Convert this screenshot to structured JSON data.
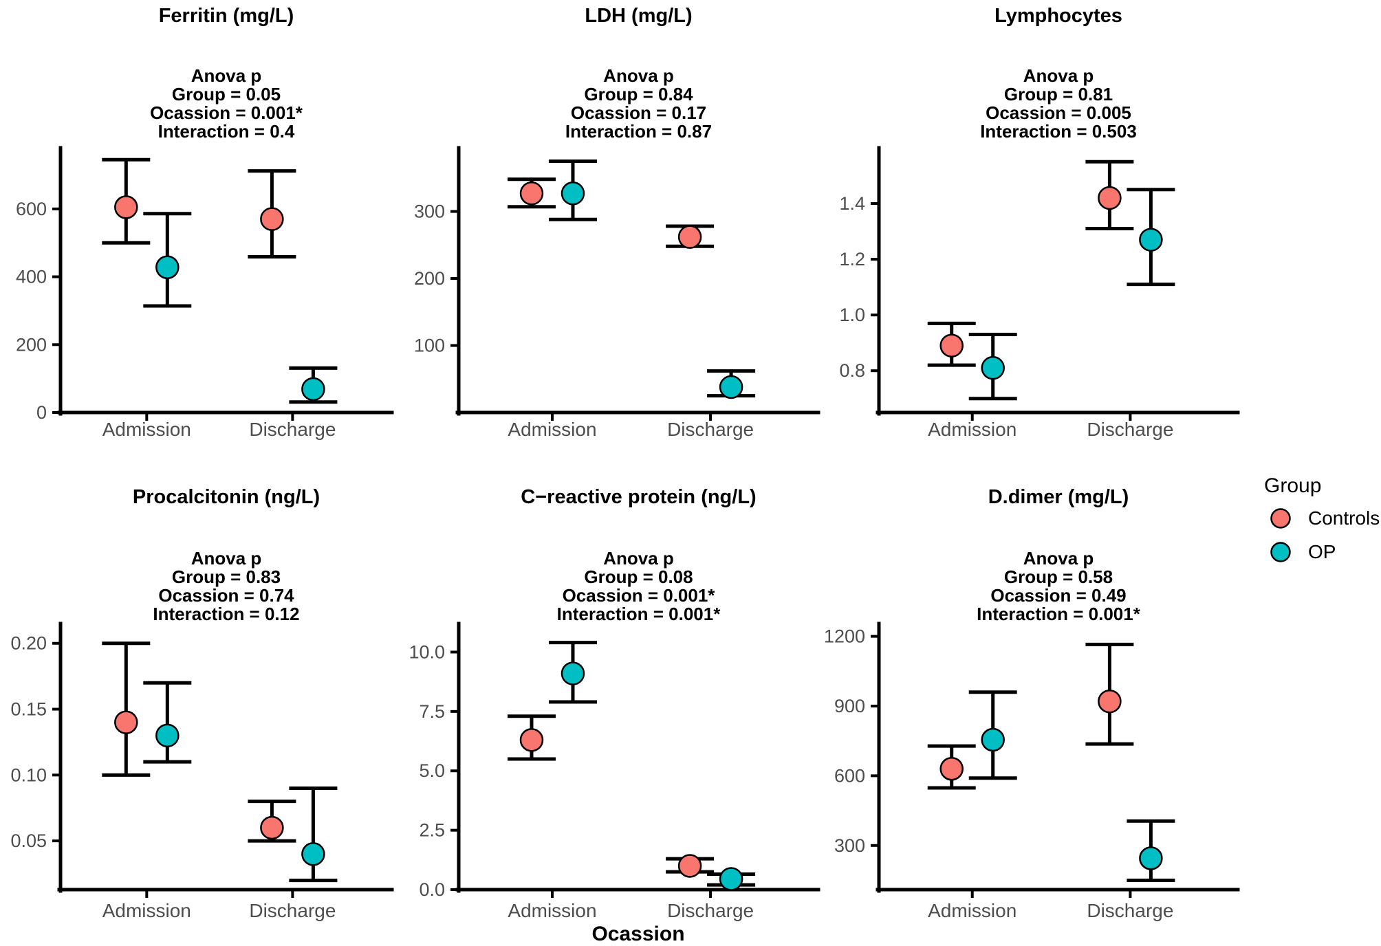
{
  "x_axis": {
    "label": "Ocassion",
    "categories": [
      "Admission",
      "Discharge"
    ]
  },
  "legend": {
    "title": "Group",
    "entries": [
      {
        "label": "Controls",
        "color": "#F8766D"
      },
      {
        "label": "OP",
        "color": "#00BFC4"
      }
    ]
  },
  "styles": {
    "controls_color": "#F8766D",
    "op_color": "#00BFC4",
    "axis_text_color": "#4d4d4d",
    "axis_line_color": "#000000",
    "background": "#ffffff"
  },
  "chart_data": [
    {
      "type": "scatter",
      "title": "Ferritin (mg/L)",
      "annotation_lines": [
        "Anova p",
        "Group = 0.05",
        "Ocassion = 0.001*",
        "Interaction = 0.4"
      ],
      "x": [
        "Admission",
        "Discharge"
      ],
      "ylim": [
        0,
        780
      ],
      "yticks": [
        "0",
        "200",
        "400",
        "600"
      ],
      "grid": false,
      "series": [
        {
          "name": "Controls",
          "color": "#F8766D",
          "points": [
            {
              "occasion": "Admission",
              "mean": 605,
              "ci": [
                500,
                745
              ]
            },
            {
              "occasion": "Discharge",
              "mean": 570,
              "ci": [
                459,
                712
              ]
            }
          ]
        },
        {
          "name": "OP",
          "color": "#00BFC4",
          "points": [
            {
              "occasion": "Admission",
              "mean": 428,
              "ci": [
                314,
                586
              ]
            },
            {
              "occasion": "Discharge",
              "mean": 69,
              "ci": [
                31,
                131
              ]
            }
          ]
        }
      ]
    },
    {
      "type": "scatter",
      "title": "LDH (mg/L)",
      "annotation_lines": [
        "Anova p",
        "Group = 0.84",
        "Ocassion = 0.17",
        "Interaction = 0.87"
      ],
      "x": [
        "Admission",
        "Discharge"
      ],
      "ylim": [
        0,
        395
      ],
      "yticks": [
        "100",
        "200",
        "300"
      ],
      "grid": false,
      "series": [
        {
          "name": "Controls",
          "color": "#F8766D",
          "points": [
            {
              "occasion": "Admission",
              "mean": 327,
              "ci": [
                307,
                348
              ]
            },
            {
              "occasion": "Discharge",
              "mean": 262,
              "ci": [
                248,
                278
              ]
            }
          ]
        },
        {
          "name": "OP",
          "color": "#00BFC4",
          "points": [
            {
              "occasion": "Admission",
              "mean": 327,
              "ci": [
                288,
                375
              ]
            },
            {
              "occasion": "Discharge",
              "mean": 38,
              "ci": [
                25,
                62
              ]
            }
          ]
        }
      ]
    },
    {
      "type": "scatter",
      "title": "Lymphocytes",
      "annotation_lines": [
        "Anova p",
        "Group = 0.81",
        "Ocassion = 0.005",
        "Interaction = 0.503"
      ],
      "x": [
        "Admission",
        "Discharge"
      ],
      "ylim": [
        0.65,
        1.6
      ],
      "yticks": [
        "0.8",
        "1.0",
        "1.2",
        "1.4"
      ],
      "grid": false,
      "series": [
        {
          "name": "Controls",
          "color": "#F8766D",
          "points": [
            {
              "occasion": "Admission",
              "mean": 0.89,
              "ci": [
                0.82,
                0.97
              ]
            },
            {
              "occasion": "Discharge",
              "mean": 1.42,
              "ci": [
                1.31,
                1.55
              ]
            }
          ]
        },
        {
          "name": "OP",
          "color": "#00BFC4",
          "points": [
            {
              "occasion": "Admission",
              "mean": 0.81,
              "ci": [
                0.7,
                0.93
              ]
            },
            {
              "occasion": "Discharge",
              "mean": 1.27,
              "ci": [
                1.11,
                1.45
              ]
            }
          ]
        }
      ]
    },
    {
      "type": "scatter",
      "title": "Procalcitonin (ng/L)",
      "annotation_lines": [
        "Anova p",
        "Group = 0.83",
        "Ocassion = 0.74",
        "Interaction = 0.12"
      ],
      "x": [
        "Admission",
        "Discharge"
      ],
      "ylim": [
        0.013,
        0.215
      ],
      "yticks": [
        "0.05",
        "0.10",
        "0.15",
        "0.20"
      ],
      "grid": false,
      "series": [
        {
          "name": "Controls",
          "color": "#F8766D",
          "points": [
            {
              "occasion": "Admission",
              "mean": 0.14,
              "ci": [
                0.1,
                0.2
              ]
            },
            {
              "occasion": "Discharge",
              "mean": 0.06,
              "ci": [
                0.05,
                0.08
              ]
            }
          ]
        },
        {
          "name": "OP",
          "color": "#00BFC4",
          "points": [
            {
              "occasion": "Admission",
              "mean": 0.13,
              "ci": [
                0.11,
                0.17
              ]
            },
            {
              "occasion": "Discharge",
              "mean": 0.04,
              "ci": [
                0.02,
                0.09
              ]
            }
          ]
        }
      ]
    },
    {
      "type": "scatter",
      "title": "C−reactive protein (ng/L)",
      "annotation_lines": [
        "Anova p",
        "Group = 0.08",
        "Ocassion = 0.001*",
        "Interaction = 0.001*"
      ],
      "x": [
        "Admission",
        "Discharge"
      ],
      "ylim": [
        0,
        11.2
      ],
      "yticks": [
        "0.0",
        "2.5",
        "5.0",
        "7.5",
        "10.0"
      ],
      "grid": false,
      "series": [
        {
          "name": "Controls",
          "color": "#F8766D",
          "points": [
            {
              "occasion": "Admission",
              "mean": 6.3,
              "ci": [
                5.5,
                7.3
              ]
            },
            {
              "occasion": "Discharge",
              "mean": 1.0,
              "ci": [
                0.75,
                1.3
              ]
            }
          ]
        },
        {
          "name": "OP",
          "color": "#00BFC4",
          "points": [
            {
              "occasion": "Admission",
              "mean": 9.1,
              "ci": [
                7.9,
                10.4
              ]
            },
            {
              "occasion": "Discharge",
              "mean": 0.45,
              "ci": [
                0.2,
                0.65
              ]
            }
          ]
        }
      ]
    },
    {
      "type": "scatter",
      "title": "D.dimer (mg/L)",
      "annotation_lines": [
        "Anova p",
        "Group = 0.58",
        "Ocassion = 0.49",
        "Interaction = 0.001*"
      ],
      "x": [
        "Admission",
        "Discharge"
      ],
      "ylim": [
        110,
        1255
      ],
      "yticks": [
        "300",
        "600",
        "900",
        "1200"
      ],
      "grid": false,
      "series": [
        {
          "name": "Controls",
          "color": "#F8766D",
          "points": [
            {
              "occasion": "Admission",
              "mean": 630,
              "ci": [
                548,
                728
              ]
            },
            {
              "occasion": "Discharge",
              "mean": 920,
              "ci": [
                737,
                1165
              ]
            }
          ]
        },
        {
          "name": "OP",
          "color": "#00BFC4",
          "points": [
            {
              "occasion": "Admission",
              "mean": 755,
              "ci": [
                590,
                960
              ]
            },
            {
              "occasion": "Discharge",
              "mean": 245,
              "ci": [
                150,
                405
              ]
            }
          ]
        }
      ]
    }
  ]
}
